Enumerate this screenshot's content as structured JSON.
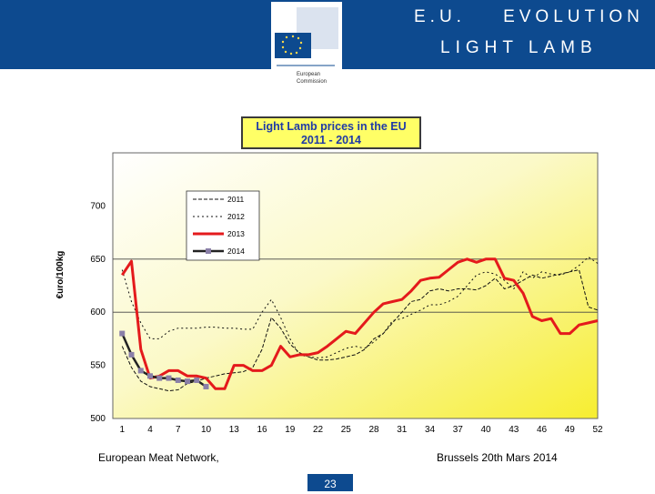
{
  "header": {
    "title": "E.U.    EVOLUTION",
    "subtitle": "LIGHT LAMB",
    "logo_text_line1": "European",
    "logo_text_line2": "Commission"
  },
  "colors": {
    "header_band": "#0d4a8f",
    "title_box_fill": "#ffff66",
    "title_text": "#1f3aa6",
    "series_2013": "#e41a1c",
    "series_2014": "#222222",
    "series_2014_marker": "#8a7fa8"
  },
  "chart_data": {
    "type": "line",
    "title": "Light Lamb prices in the EU",
    "subtitle": "2011 - 2014",
    "ylabel": "€uro/100kg",
    "xlabel": "",
    "ylim": [
      500,
      750
    ],
    "xlim": [
      0,
      52
    ],
    "yticks": [
      500,
      550,
      600,
      650,
      700
    ],
    "xticks": [
      1,
      4,
      7,
      10,
      13,
      16,
      19,
      22,
      25,
      28,
      31,
      34,
      37,
      40,
      43,
      46,
      49,
      52
    ],
    "grid": "horizontal at 600 and 650",
    "legend_position": "top-left",
    "background": "yellow-to-white gradient",
    "series": [
      {
        "name": "2011",
        "style": "dashed",
        "x": [
          1,
          2,
          3,
          4,
          5,
          6,
          7,
          8,
          9,
          10,
          11,
          12,
          13,
          14,
          15,
          16,
          17,
          18,
          19,
          20,
          21,
          22,
          23,
          24,
          25,
          26,
          27,
          28,
          29,
          30,
          31,
          32,
          33,
          34,
          35,
          36,
          37,
          38,
          39,
          40,
          41,
          42,
          43,
          44,
          45,
          46,
          47,
          48,
          49,
          50,
          51,
          52
        ],
        "y": [
          568,
          548,
          535,
          530,
          528,
          526,
          527,
          533,
          535,
          538,
          540,
          542,
          543,
          544,
          548,
          565,
          595,
          585,
          570,
          562,
          558,
          555,
          555,
          556,
          558,
          560,
          565,
          575,
          580,
          590,
          600,
          610,
          612,
          620,
          622,
          620,
          622,
          622,
          621,
          625,
          632,
          622,
          625,
          630,
          635,
          632,
          634,
          636,
          638,
          640,
          605,
          602
        ]
      },
      {
        "name": "2012",
        "style": "dashed",
        "x": [
          1,
          2,
          3,
          4,
          5,
          6,
          7,
          8,
          9,
          10,
          11,
          12,
          13,
          14,
          15,
          16,
          17,
          18,
          19,
          20,
          21,
          22,
          23,
          24,
          25,
          26,
          27,
          28,
          29,
          30,
          31,
          32,
          33,
          34,
          35,
          36,
          37,
          38,
          39,
          40,
          41,
          42,
          43,
          44,
          45,
          46,
          47,
          48,
          49,
          50,
          51,
          52
        ],
        "y": [
          640,
          610,
          590,
          575,
          575,
          582,
          585,
          585,
          585,
          586,
          586,
          585,
          585,
          584,
          584,
          600,
          612,
          595,
          575,
          560,
          558,
          557,
          558,
          562,
          566,
          568,
          566,
          572,
          580,
          592,
          594,
          598,
          602,
          607,
          607,
          610,
          615,
          625,
          635,
          638,
          636,
          630,
          622,
          638,
          632,
          638,
          636,
          635,
          638,
          644,
          652,
          646
        ]
      },
      {
        "name": "2013",
        "style": "solid-thick",
        "x": [
          1,
          2,
          3,
          4,
          5,
          6,
          7,
          8,
          9,
          10,
          11,
          12,
          13,
          14,
          15,
          16,
          17,
          18,
          19,
          20,
          21,
          22,
          23,
          24,
          25,
          26,
          27,
          28,
          29,
          30,
          31,
          32,
          33,
          34,
          35,
          36,
          37,
          38,
          39,
          40,
          41,
          42,
          43,
          44,
          45,
          46,
          47,
          48,
          49,
          50,
          51,
          52
        ],
        "y": [
          635,
          648,
          565,
          538,
          540,
          545,
          545,
          540,
          540,
          538,
          528,
          528,
          550,
          550,
          545,
          545,
          550,
          568,
          558,
          560,
          560,
          562,
          568,
          575,
          582,
          580,
          590,
          600,
          608,
          610,
          612,
          620,
          630,
          632,
          633,
          640,
          647,
          650,
          647,
          650,
          650,
          632,
          630,
          618,
          596,
          592,
          594,
          580,
          580,
          588,
          590,
          592
        ]
      },
      {
        "name": "2014",
        "style": "solid-with-markers",
        "x": [
          1,
          2,
          3,
          4,
          5,
          6,
          7,
          8,
          9,
          10
        ],
        "y": [
          580,
          560,
          545,
          540,
          538,
          538,
          536,
          535,
          536,
          530
        ]
      }
    ],
    "footer": {
      "left": "European Meat Network,",
      "right": "Brussels 20th Mars 2014",
      "page": "23"
    }
  }
}
